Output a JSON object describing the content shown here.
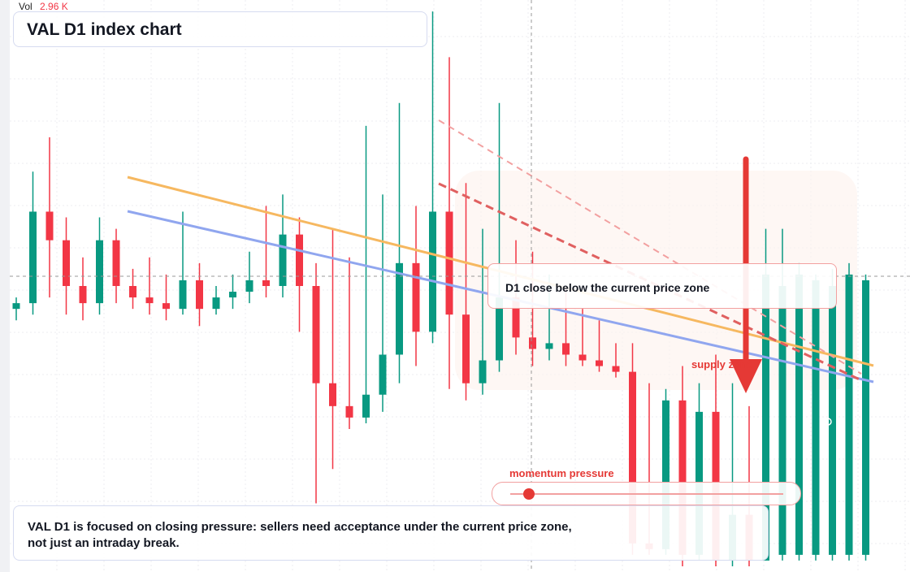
{
  "vol_label": "Vol",
  "vol_value": "2.96 K",
  "chart_data": {
    "type": "candlestick",
    "title": "VAL D1 index chart",
    "ylim": [
      0,
      100
    ],
    "up_color": "#089981",
    "down_color": "#f23645",
    "candles": [
      [
        46,
        48,
        44,
        47
      ],
      [
        47,
        70,
        45,
        63
      ],
      [
        63,
        76,
        48,
        58
      ],
      [
        58,
        62,
        45,
        50
      ],
      [
        50,
        55,
        44,
        47
      ],
      [
        47,
        62,
        45,
        58
      ],
      [
        58,
        60,
        47,
        50
      ],
      [
        50,
        53,
        46,
        48
      ],
      [
        48,
        55,
        45,
        47
      ],
      [
        47,
        52,
        44,
        46
      ],
      [
        46,
        63,
        45,
        51
      ],
      [
        51,
        54,
        43,
        46
      ],
      [
        46,
        50,
        45,
        48
      ],
      [
        48,
        52,
        46,
        49
      ],
      [
        49,
        56,
        47,
        51
      ],
      [
        51,
        64,
        48,
        50
      ],
      [
        50,
        66,
        48,
        59
      ],
      [
        59,
        62,
        42,
        50
      ],
      [
        50,
        54,
        12,
        33
      ],
      [
        33,
        60,
        18,
        29
      ],
      [
        29,
        55,
        25,
        27
      ],
      [
        27,
        78,
        26,
        31
      ],
      [
        31,
        66,
        28,
        38
      ],
      [
        38,
        82,
        33,
        54
      ],
      [
        54,
        64,
        36,
        42
      ],
      [
        42,
        98,
        40,
        63
      ],
      [
        63,
        90,
        32,
        45
      ],
      [
        45,
        68,
        30,
        33
      ],
      [
        33,
        60,
        31,
        37
      ],
      [
        37,
        82,
        35,
        48
      ],
      [
        48,
        58,
        38,
        41
      ],
      [
        41,
        56,
        36,
        39
      ],
      [
        39,
        52,
        37,
        40
      ],
      [
        40,
        50,
        36,
        38
      ],
      [
        38,
        46,
        36,
        37
      ],
      [
        37,
        44,
        35,
        36
      ],
      [
        36,
        40,
        34,
        35
      ],
      [
        35,
        40,
        3,
        5
      ],
      [
        5,
        33,
        3,
        4
      ],
      [
        4,
        32,
        3,
        30
      ],
      [
        30,
        36,
        1,
        3
      ],
      [
        3,
        33,
        2,
        28
      ],
      [
        28,
        38,
        1,
        2
      ],
      [
        2,
        33,
        1,
        10
      ],
      [
        10,
        29,
        1,
        2
      ],
      [
        2,
        60,
        2,
        52
      ],
      [
        3,
        60,
        2,
        50
      ],
      [
        3,
        54,
        2,
        52
      ],
      [
        3,
        52,
        2,
        51
      ],
      [
        3,
        53,
        2,
        50
      ],
      [
        3,
        54,
        2,
        52
      ],
      [
        3,
        52,
        2,
        51
      ]
    ]
  },
  "annotations": {
    "callout": "D1 close below the current price zone",
    "zone": "supply zone",
    "slider": "momentum pressure",
    "caption": "VAL D1 is focused on closing pressure: sellers need acceptance under the current price zone, not just an intraday break."
  }
}
